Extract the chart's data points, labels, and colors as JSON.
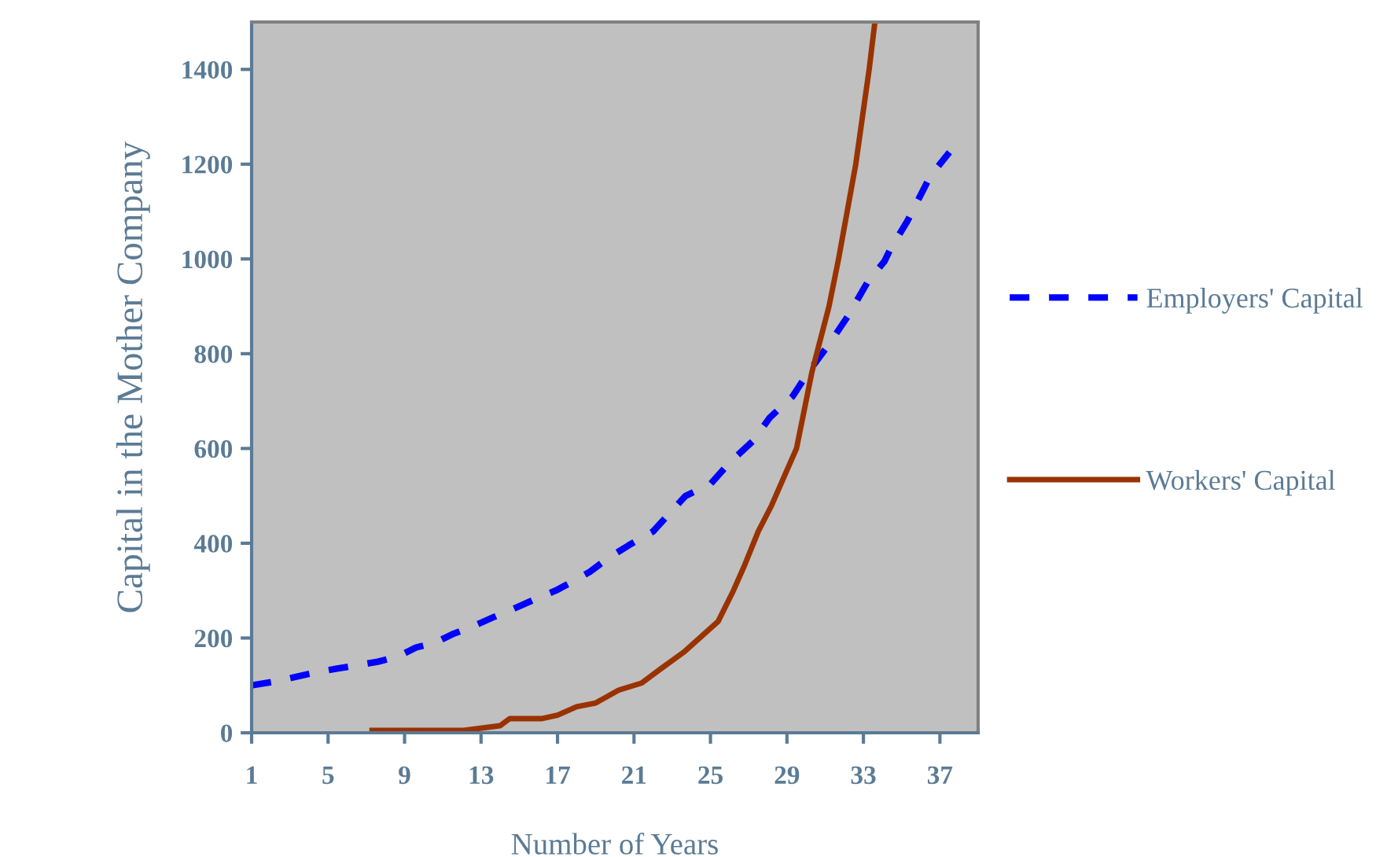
{
  "chart_data": {
    "type": "line",
    "xlabel": "Number of Years",
    "ylabel": "Capital in the Mother Company",
    "xlim": [
      1,
      39
    ],
    "xticks": [
      1,
      5,
      9,
      13,
      17,
      21,
      25,
      29,
      33,
      37
    ],
    "ylim": [
      0,
      1500
    ],
    "yticks": [
      0,
      200,
      400,
      600,
      800,
      1000,
      1200,
      1400
    ],
    "grid": false,
    "legend": "right",
    "marker": "none",
    "series": [
      {
        "name": "Employers' Capital",
        "color": "#0000ff",
        "line_style": "dashed",
        "x": [
          1.0,
          2.2,
          3.2,
          4.3,
          5.4,
          6.6,
          7.6,
          8.6,
          9.6,
          10.6,
          11.5,
          12.6,
          13.6,
          14.6,
          16.0,
          16.9,
          17.6,
          18.7,
          19.7,
          20.7,
          22.0,
          22.9,
          23.7,
          25.0,
          26.0,
          27.2,
          28.1,
          29.3,
          30.1,
          31.2,
          32.2,
          33.2,
          34.1,
          34.4,
          35.3,
          36.5,
          37.5
        ],
        "values": [
          100,
          108,
          117,
          127,
          135,
          143,
          150,
          160,
          180,
          190,
          208,
          225,
          243,
          260,
          285,
          300,
          315,
          340,
          370,
          395,
          425,
          465,
          500,
          525,
          570,
          615,
          665,
          710,
          760,
          820,
          880,
          950,
          995,
          1020,
          1080,
          1175,
          1225
        ]
      },
      {
        "name": "Workers' Capital",
        "color": "#993300",
        "line_style": "solid",
        "x": [
          7.3,
          12.1,
          14.0,
          14.5,
          16.2,
          17.0,
          18.0,
          19.0,
          20.2,
          21.4,
          22.4,
          23.6,
          25.4,
          26.2,
          26.8,
          27.5,
          28.2,
          28.9,
          29.5,
          30.3,
          31.2,
          31.7,
          32.6,
          33.3,
          33.6
        ],
        "values": [
          5,
          5,
          15,
          30,
          30,
          37,
          55,
          63,
          90,
          105,
          135,
          170,
          235,
          300,
          355,
          425,
          480,
          545,
          600,
          760,
          900,
          1000,
          1200,
          1400,
          1500
        ]
      }
    ]
  }
}
